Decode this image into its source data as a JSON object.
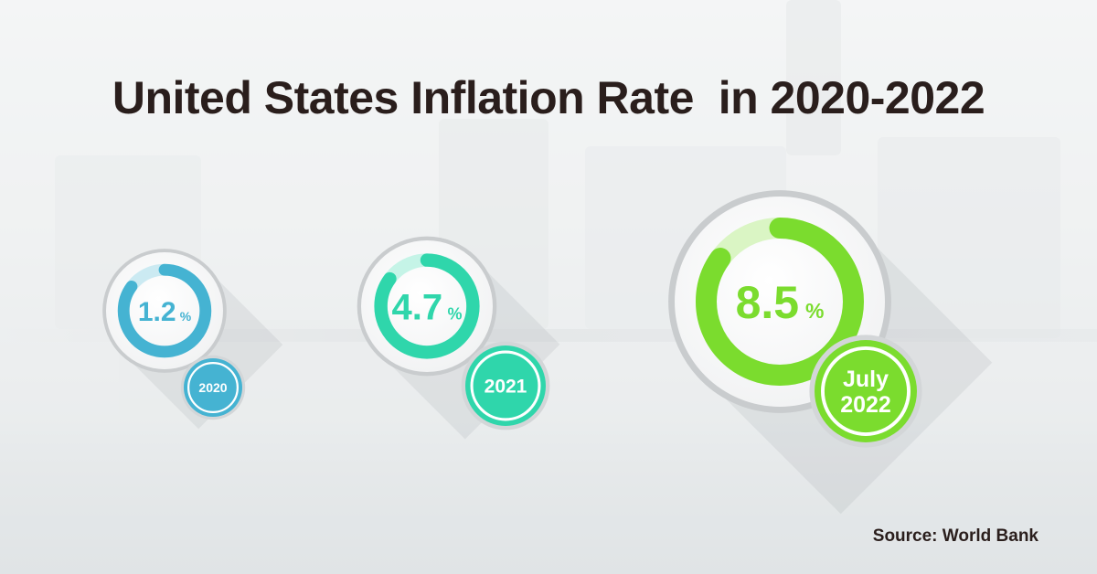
{
  "title": "United States Inflation Rate  in 2020-2022",
  "source": "Source: World Bank",
  "chart_data": {
    "type": "bar",
    "title": "United States Inflation Rate  in 2020-2022",
    "categories": [
      "2020",
      "2021",
      "July 2022"
    ],
    "values": [
      1.2,
      4.7,
      8.5
    ],
    "unit": "%",
    "series": [
      {
        "values": [
          1.2,
          4.7,
          8.5
        ],
        "value_labels": [
          "1.2",
          "4.7",
          "8.5"
        ],
        "year_labels": [
          [
            "2020"
          ],
          [
            "2021"
          ],
          [
            "July",
            "2022"
          ]
        ],
        "ring_fill": [
          0.85,
          0.85,
          0.85
        ],
        "colors": [
          "#45b3d2",
          "#2fd6ab",
          "#7bdc2e"
        ]
      }
    ]
  }
}
